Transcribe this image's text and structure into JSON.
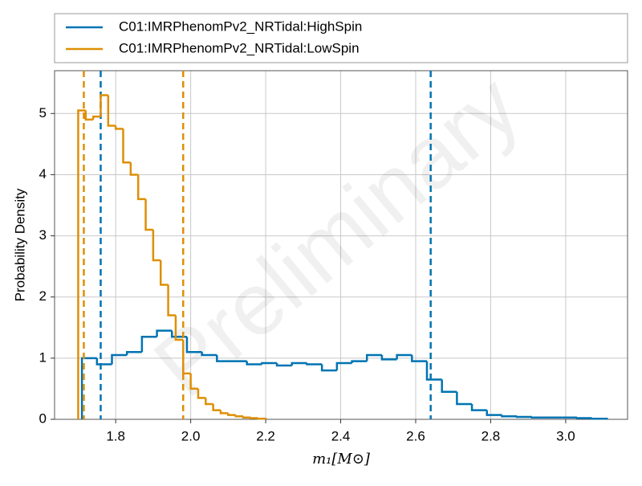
{
  "chart_data": {
    "type": "histogram",
    "watermark": "Preliminary",
    "xlabel": "m₁[M⊙]",
    "ylabel": "Probability Density",
    "xlim": [
      1.637,
      3.165
    ],
    "ylim": [
      0,
      5.7
    ],
    "xticks": [
      1.8,
      {
        "value": 2.0,
        "label": "2.0"
      },
      2.2,
      2.4,
      2.6,
      2.8,
      {
        "value": 3.0,
        "label": "3.0"
      }
    ],
    "yticks": [
      0,
      1,
      2,
      3,
      4,
      5
    ],
    "grid": true,
    "legend": "top",
    "series": [
      {
        "name": "C01:IMRPhenomPv2_NRTidal:HighSpin",
        "color": "#0173b2",
        "bins": [
          1.71,
          1.75,
          1.79,
          1.83,
          1.87,
          1.91,
          1.95,
          1.99,
          2.03,
          2.07,
          2.11,
          2.15,
          2.19,
          2.23,
          2.27,
          2.31,
          2.35,
          2.39,
          2.43,
          2.47,
          2.51,
          2.55,
          2.59,
          2.63,
          2.67,
          2.71,
          2.75,
          2.79,
          2.83,
          2.87,
          2.91,
          2.95,
          2.99,
          3.03,
          3.07,
          3.11
        ],
        "values": [
          1.0,
          0.9,
          1.05,
          1.1,
          1.35,
          1.45,
          1.35,
          1.1,
          1.05,
          0.95,
          0.95,
          0.9,
          0.92,
          0.88,
          0.92,
          0.9,
          0.8,
          0.92,
          0.95,
          1.05,
          0.98,
          1.05,
          0.95,
          0.65,
          0.45,
          0.25,
          0.15,
          0.07,
          0.05,
          0.04,
          0.03,
          0.03,
          0.03,
          0.02,
          0.01
        ],
        "interval": [
          1.76,
          2.64
        ]
      },
      {
        "name": "C01:IMRPhenomPv2_NRTidal:LowSpin",
        "color": "#de8f05",
        "bins": [
          1.7,
          1.72,
          1.74,
          1.76,
          1.78,
          1.8,
          1.82,
          1.84,
          1.86,
          1.88,
          1.9,
          1.92,
          1.94,
          1.96,
          1.98,
          2.0,
          2.02,
          2.04,
          2.06,
          2.08,
          2.1,
          2.12,
          2.14,
          2.16,
          2.18,
          2.2
        ],
        "values": [
          5.05,
          4.9,
          4.95,
          5.3,
          4.8,
          4.75,
          4.2,
          4.0,
          3.6,
          3.1,
          2.6,
          2.2,
          1.7,
          1.3,
          0.75,
          0.5,
          0.35,
          0.25,
          0.15,
          0.1,
          0.07,
          0.05,
          0.03,
          0.02,
          0.01
        ],
        "interval": [
          1.715,
          1.98
        ]
      }
    ]
  }
}
